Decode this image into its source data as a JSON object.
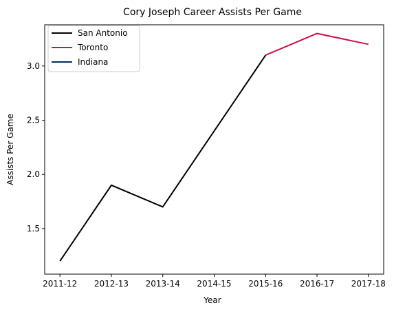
{
  "chart_data": {
    "type": "line",
    "title": "Cory Joseph Career Assists Per Game",
    "xlabel": "Year",
    "ylabel": "Assists Per Game",
    "categories": [
      "2011-12",
      "2012-13",
      "2013-14",
      "2014-15",
      "2015-16",
      "2016-17",
      "2017-18"
    ],
    "ylim": [
      1.08,
      3.38
    ],
    "yticks": [
      "1.5",
      "2.0",
      "2.5",
      "3.0"
    ],
    "grid": false,
    "legend_position": "top-left",
    "series": [
      {
        "name": "San Antonio",
        "color": "#000000",
        "x": [
          "2011-12",
          "2012-13",
          "2013-14",
          "2014-15",
          "2015-16"
        ],
        "values": [
          1.2,
          1.9,
          1.7,
          2.4,
          3.1
        ]
      },
      {
        "name": "Toronto",
        "color": "#CE1141",
        "x": [
          "2015-16",
          "2016-17",
          "2017-18"
        ],
        "values": [
          3.1,
          3.3,
          3.2
        ]
      },
      {
        "name": "Indiana",
        "color": "#002D62",
        "x": [],
        "values": []
      }
    ]
  }
}
